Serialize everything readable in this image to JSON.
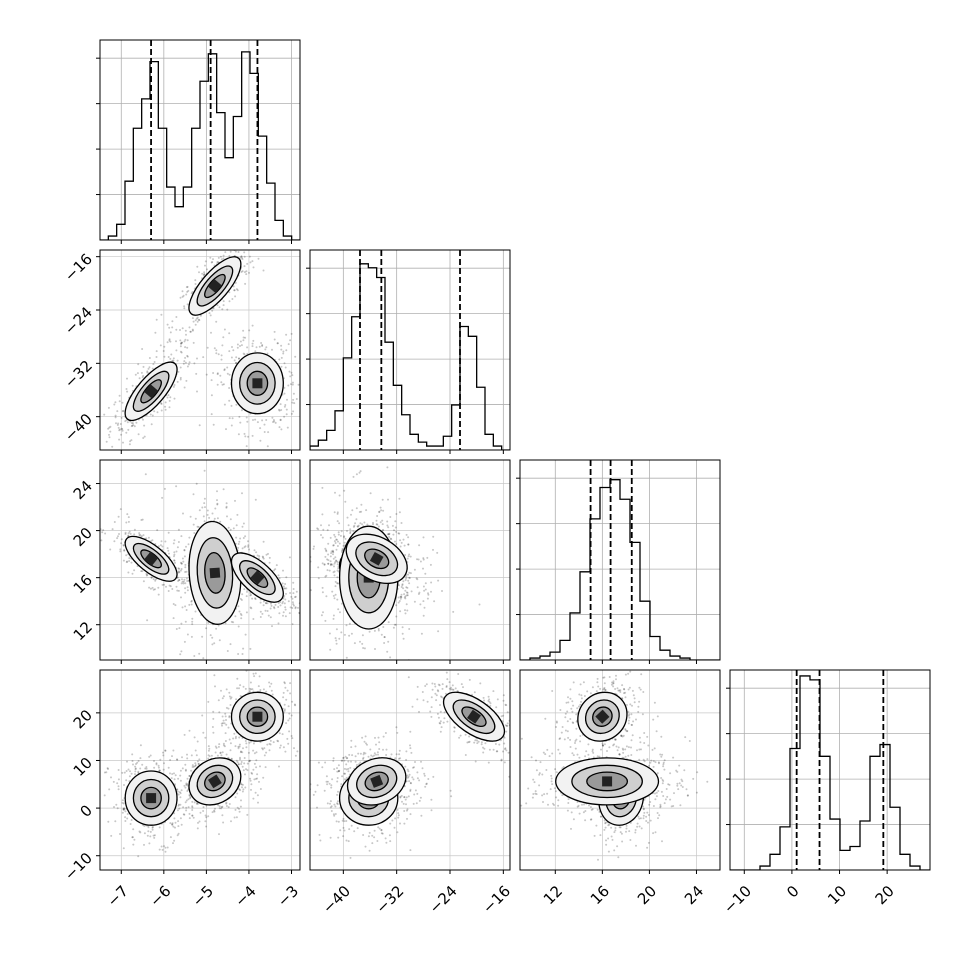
{
  "chart_data": {
    "type": "corner",
    "parameters": [
      {
        "id": "p0",
        "range": [
          -7.5,
          -2.8
        ],
        "ticks": [
          -7,
          -6,
          -5,
          -4,
          -3
        ],
        "tick_labels": [
          "−7",
          "−6",
          "−5",
          "−4",
          "−3"
        ],
        "quantiles": [
          -6.3,
          -4.9,
          -3.8
        ],
        "histogram": [
          0,
          0.02,
          0.08,
          0.3,
          0.57,
          0.72,
          0.91,
          0.57,
          0.27,
          0.17,
          0.27,
          0.57,
          0.81,
          0.95,
          0.65,
          0.42,
          0.63,
          0.96,
          0.85,
          0.53,
          0.29,
          0.1,
          0.02,
          0.0
        ]
      },
      {
        "id": "p1",
        "range": [
          -45,
          -15
        ],
        "ticks": [
          -40,
          -32,
          -24,
          -16
        ],
        "tick_labels": [
          "−40",
          "−32",
          "−24",
          "−16"
        ],
        "quantiles": [
          -37.5,
          -34.3,
          -22.5
        ],
        "histogram": [
          0.02,
          0.05,
          0.1,
          0.2,
          0.47,
          0.68,
          0.95,
          0.93,
          0.88,
          0.55,
          0.33,
          0.18,
          0.08,
          0.04,
          0.02,
          0.02,
          0.07,
          0.23,
          0.63,
          0.58,
          0.32,
          0.08,
          0.02,
          0.0
        ]
      },
      {
        "id": "p2",
        "range": [
          9,
          26
        ],
        "ticks": [
          12,
          16,
          20,
          24
        ],
        "tick_labels": [
          "12",
          "16",
          "20",
          "24"
        ],
        "quantiles": [
          15.0,
          16.7,
          18.5
        ],
        "histogram": [
          0.0,
          0.01,
          0.02,
          0.04,
          0.1,
          0.24,
          0.45,
          0.72,
          0.88,
          0.92,
          0.82,
          0.6,
          0.3,
          0.12,
          0.05,
          0.02,
          0.01,
          0.0,
          0.0,
          0.0
        ]
      },
      {
        "id": "p3",
        "range": [
          -13,
          29
        ],
        "ticks": [
          -10,
          0,
          10,
          20
        ],
        "tick_labels": [
          "−10",
          "0",
          "10",
          "20"
        ],
        "quantiles": [
          1.0,
          5.8,
          19.2
        ],
        "histogram": [
          0.0,
          0.0,
          0.0,
          0.02,
          0.08,
          0.22,
          0.62,
          0.99,
          0.97,
          0.58,
          0.26,
          0.1,
          0.12,
          0.25,
          0.58,
          0.64,
          0.32,
          0.08,
          0.02,
          0.0
        ]
      }
    ],
    "components": [
      {
        "mean": [
          -6.3,
          -36.2,
          17.6,
          2.1
        ],
        "sd": [
          0.32,
          2.3,
          1.0,
          3.0
        ]
      },
      {
        "mean": [
          -4.8,
          -20.4,
          16.4,
          5.6
        ],
        "sd": [
          0.32,
          2.3,
          2.3,
          2.6
        ]
      },
      {
        "mean": [
          -3.8,
          -35.0,
          16.0,
          19.2
        ],
        "sd": [
          0.32,
          2.4,
          1.1,
          2.7
        ]
      }
    ],
    "pairs": [
      {
        "x": 0,
        "y": 1,
        "comp": [
          0,
          1,
          2
        ],
        "corr": [
          0.75,
          0.75,
          0.0
        ]
      },
      {
        "x": 0,
        "y": 2,
        "comp": [
          0,
          1,
          2
        ],
        "corr": [
          -0.7,
          -0.1,
          -0.65
        ]
      },
      {
        "x": 1,
        "y": 2,
        "comp": [
          0,
          1,
          2
        ],
        "corr": [
          -0.35,
          0.0,
          -0.35
        ],
        "map": [
          [
            0,
            0,
            2
          ],
          [
            1,
            2,
            0
          ]
        ]
      },
      {
        "x": 0,
        "y": 3,
        "comp": [
          0,
          1,
          2
        ],
        "corr": [
          0.0,
          0.2,
          0.0
        ]
      },
      {
        "x": 1,
        "y": 3,
        "comp": [
          0,
          1,
          2
        ],
        "corr": [
          0.0,
          0.2,
          -0.6
        ],
        "map": [
          [
            0,
            2,
            1
          ],
          [
            0,
            1,
            2
          ]
        ]
      },
      {
        "x": 2,
        "y": 3,
        "comp": [
          0,
          1,
          2
        ],
        "corr": [
          0.1,
          0.0,
          0.1
        ]
      }
    ],
    "contour_levels": [
      0.25,
      0.55,
      0.8
    ],
    "grid": true
  }
}
